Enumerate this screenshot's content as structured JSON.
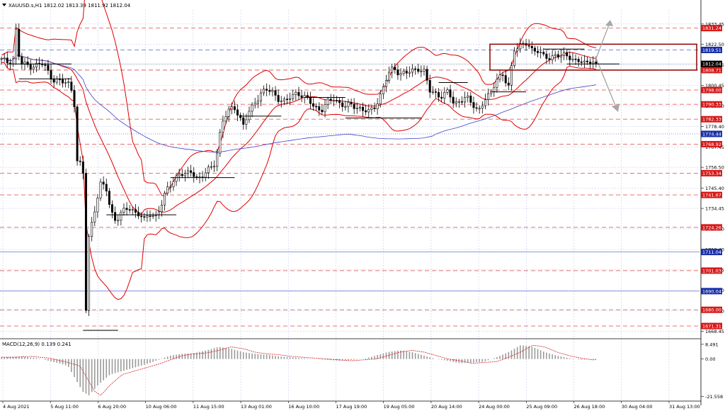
{
  "chart_data": {
    "type": "candlestick",
    "symbol_header": "XAUUSD.s,H1  1812.02 1813.39 1811.92 1812.04",
    "macd_header": "MACD(12,26,9) 0.139 0.241",
    "price_axis_ticks": [
      "1833.45",
      "1822.50",
      "1811.55",
      "1800.45",
      "1789.50",
      "1778.40",
      "1767.45",
      "1756.50",
      "1745.40",
      "1734.45",
      "1723.50",
      "1712.40",
      "1701.45",
      "1690.50",
      "1679.40",
      "1668.45"
    ],
    "macd_axis_ticks": [
      "8.491",
      "0.00",
      "-21.558"
    ],
    "x_ticks": [
      "4 Aug 2021",
      "5 Aug 11:00",
      "6 Aug 20:00",
      "10 Aug 06:00",
      "11 Aug 15:00",
      "13 Aug 01:00",
      "16 Aug 10:00",
      "17 Aug 19:00",
      "19 Aug 05:00",
      "20 Aug 14:00",
      "24 Aug 00:00",
      "25 Aug 09:00",
      "26 Aug 18:00",
      "30 Aug 04:00",
      "31 Aug 13:00"
    ],
    "current_price": "1812.04",
    "blue_levels": [
      "1819.51",
      "1774.44",
      "1711.04",
      "1690.04"
    ],
    "red_levels": [
      "1831.24",
      "1808.71",
      "1798.00",
      "1790.33",
      "1782.33",
      "1768.92",
      "1753.34",
      "1741.67",
      "1724.26",
      "1701.03",
      "1680.00",
      "1671.31"
    ],
    "price_range": [
      1666.0,
      1841.0
    ],
    "macd_range": [
      -23.5,
      10.5
    ],
    "price_path": [
      [
        0,
        1814
      ],
      [
        2,
        1813
      ],
      [
        4,
        1815
      ],
      [
        5,
        1833
      ],
      [
        6,
        1812
      ],
      [
        10,
        1811
      ],
      [
        14,
        1812
      ],
      [
        16,
        1806
      ],
      [
        17,
        1804
      ],
      [
        20,
        1802
      ],
      [
        22,
        1802
      ],
      [
        24,
        1796
      ],
      [
        25,
        1760
      ],
      [
        26,
        1758
      ],
      [
        27,
        1756
      ],
      [
        28,
        1680
      ],
      [
        29,
        1720
      ],
      [
        31,
        1735
      ],
      [
        33,
        1748
      ],
      [
        35,
        1744
      ],
      [
        36,
        1734
      ],
      [
        38,
        1728
      ],
      [
        40,
        1732
      ],
      [
        42,
        1735
      ],
      [
        44,
        1733
      ],
      [
        46,
        1731
      ],
      [
        47,
        1727
      ],
      [
        49,
        1732
      ],
      [
        51,
        1730
      ],
      [
        53,
        1736
      ],
      [
        55,
        1745
      ],
      [
        57,
        1750
      ],
      [
        59,
        1753
      ],
      [
        61,
        1752
      ],
      [
        63,
        1755
      ],
      [
        65,
        1750
      ],
      [
        67,
        1752
      ],
      [
        69,
        1756
      ],
      [
        71,
        1760
      ],
      [
        73,
        1780
      ],
      [
        75,
        1786
      ],
      [
        77,
        1790
      ],
      [
        79,
        1783
      ],
      [
        80,
        1778
      ],
      [
        82,
        1786
      ],
      [
        84,
        1792
      ],
      [
        86,
        1796
      ],
      [
        88,
        1798
      ],
      [
        90,
        1797
      ],
      [
        92,
        1793
      ],
      [
        94,
        1791
      ],
      [
        96,
        1795
      ],
      [
        98,
        1797
      ],
      [
        100,
        1794
      ],
      [
        102,
        1792
      ],
      [
        104,
        1789
      ],
      [
        106,
        1787
      ],
      [
        108,
        1791
      ],
      [
        110,
        1794
      ],
      [
        112,
        1791
      ],
      [
        114,
        1789
      ],
      [
        116,
        1790
      ],
      [
        118,
        1789
      ],
      [
        120,
        1787
      ],
      [
        122,
        1786
      ],
      [
        124,
        1790
      ],
      [
        126,
        1797
      ],
      [
        128,
        1806
      ],
      [
        130,
        1810
      ],
      [
        132,
        1807
      ],
      [
        134,
        1807
      ],
      [
        136,
        1808
      ],
      [
        138,
        1810
      ],
      [
        140,
        1808
      ],
      [
        142,
        1797
      ],
      [
        144,
        1796
      ],
      [
        146,
        1795
      ],
      [
        148,
        1797
      ],
      [
        150,
        1790
      ],
      [
        152,
        1793
      ],
      [
        154,
        1794
      ],
      [
        156,
        1790
      ],
      [
        158,
        1787
      ],
      [
        160,
        1793
      ],
      [
        162,
        1795
      ],
      [
        164,
        1804
      ],
      [
        166,
        1807
      ],
      [
        168,
        1799
      ],
      [
        170,
        1820
      ],
      [
        172,
        1823
      ],
      [
        174,
        1823
      ],
      [
        176,
        1818
      ],
      [
        178,
        1820
      ],
      [
        180,
        1816
      ],
      [
        182,
        1814
      ],
      [
        184,
        1817
      ],
      [
        186,
        1818
      ],
      [
        188,
        1815
      ],
      [
        190,
        1813
      ],
      [
        192,
        1815
      ],
      [
        194,
        1812
      ],
      [
        196,
        1813
      ],
      [
        197,
        1812
      ]
    ],
    "macd_path": [
      [
        0,
        1
      ],
      [
        6,
        1.5
      ],
      [
        12,
        0.5
      ],
      [
        18,
        -2
      ],
      [
        22,
        -4
      ],
      [
        24,
        -10
      ],
      [
        27,
        -19
      ],
      [
        29,
        -21
      ],
      [
        32,
        -15
      ],
      [
        36,
        -9
      ],
      [
        40,
        -7
      ],
      [
        44,
        -5
      ],
      [
        48,
        -3
      ],
      [
        52,
        -0.5
      ],
      [
        56,
        2
      ],
      [
        60,
        3
      ],
      [
        64,
        3.5
      ],
      [
        68,
        5
      ],
      [
        72,
        7
      ],
      [
        76,
        6
      ],
      [
        80,
        4
      ],
      [
        84,
        3
      ],
      [
        88,
        2.5
      ],
      [
        92,
        1.5
      ],
      [
        96,
        1
      ],
      [
        100,
        0.5
      ],
      [
        104,
        0
      ],
      [
        108,
        -0.5
      ],
      [
        112,
        -1
      ],
      [
        116,
        -0.5
      ],
      [
        120,
        0
      ],
      [
        124,
        2
      ],
      [
        128,
        4
      ],
      [
        132,
        5
      ],
      [
        136,
        4
      ],
      [
        140,
        2
      ],
      [
        144,
        0
      ],
      [
        148,
        -1
      ],
      [
        152,
        -2.5
      ],
      [
        156,
        -2
      ],
      [
        160,
        -1.5
      ],
      [
        164,
        1
      ],
      [
        168,
        4
      ],
      [
        172,
        8
      ],
      [
        176,
        7
      ],
      [
        180,
        4
      ],
      [
        184,
        2
      ],
      [
        188,
        0.5
      ],
      [
        192,
        -0.5
      ],
      [
        196,
        0.2
      ],
      [
        197,
        0.2
      ]
    ]
  },
  "icons": {
    "dropdown": "triangle-down-icon"
  },
  "colors": {
    "grid": "#b8c2e8",
    "up": "#000000",
    "band": "#e00000",
    "blue_ma": "#4040c8",
    "level_red": "#e06060",
    "level_blue": "#7a86e0",
    "label_red": "#d81818",
    "label_blue": "#1830a8",
    "label_black": "#000000",
    "arrow": "#a8a8a8"
  }
}
